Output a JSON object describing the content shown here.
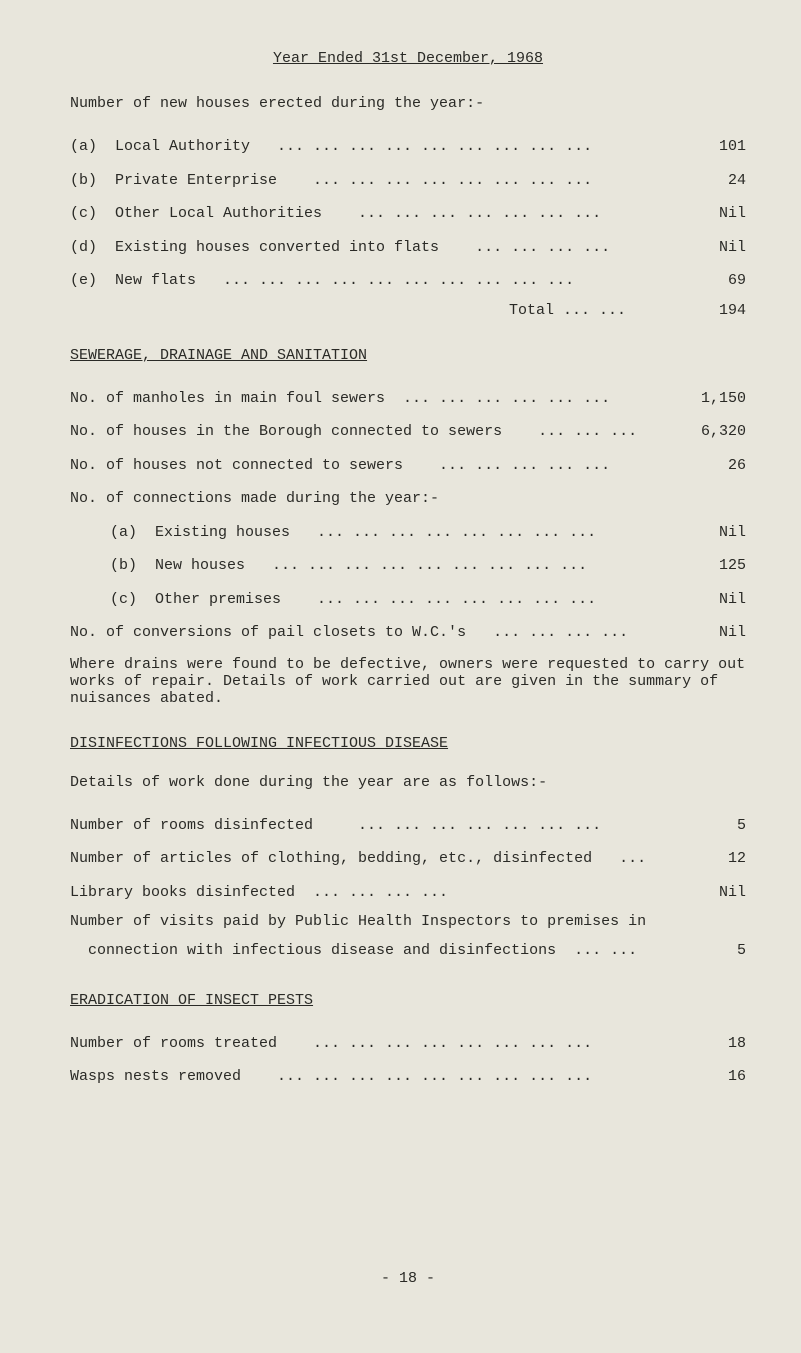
{
  "title": "Year Ended 31st December, 1968",
  "houses_erected_heading": "Number of new houses erected during the year:-",
  "houses": {
    "a": {
      "label": "(a)  Local Authority   ... ... ... ... ... ... ... ... ...",
      "value": "101"
    },
    "b": {
      "label": "(b)  Private Enterprise    ... ... ... ... ... ... ... ...",
      "value": "24"
    },
    "c": {
      "label": "(c)  Other Local Authorities    ... ... ... ... ... ... ...",
      "value": "Nil"
    },
    "d": {
      "label": "(d)  Existing houses converted into flats    ... ... ... ...",
      "value": "Nil"
    },
    "e": {
      "label": "(e)  New flats   ... ... ... ... ... ... ... ... ... ...",
      "value": "69"
    },
    "total_label": "Total     ... ...",
    "total_value": "194"
  },
  "sewerage_head": "SEWERAGE, DRAINAGE AND SANITATION",
  "sewerage": {
    "r1": {
      "label": "No. of manholes in main foul sewers  ... ... ... ... ... ...",
      "value": "1,150"
    },
    "r2": {
      "label": "No. of houses in the Borough connected to sewers    ... ... ...",
      "value": "6,320"
    },
    "r3": {
      "label": "No. of houses not connected to sewers    ... ... ... ... ...",
      "value": "26"
    },
    "r4": {
      "label": "No. of connections made during the year:-",
      "value": ""
    },
    "sa": {
      "label": "(a)  Existing houses   ... ... ... ... ... ... ... ...",
      "value": "Nil"
    },
    "sb": {
      "label": "(b)  New houses   ... ... ... ... ... ... ... ... ...",
      "value": "125"
    },
    "sc": {
      "label": "(c)  Other premises    ... ... ... ... ... ... ... ...",
      "value": "Nil"
    },
    "conv": {
      "label": "No. of conversions of pail closets to W.C.'s   ... ... ... ...",
      "value": "Nil"
    }
  },
  "drains_para": "Where drains were found to be defective, owners were requested to carry out works of repair.  Details of work carried out are given in the summary of nuisances abated.",
  "disinfections_head": "DISINFECTIONS FOLLOWING INFECTIOUS DISEASE",
  "disinfections_intro": "Details of work done during the year are as follows:-",
  "disinfections": {
    "r1": {
      "label": "Number of rooms disinfected     ... ... ... ... ... ... ...",
      "value": "5"
    },
    "r2": {
      "label": "Number of articles of clothing, bedding, etc., disinfected   ...",
      "value": "12"
    },
    "r3": {
      "label": "Library books disinfected  ... ... ... ... ",
      "value": "Nil"
    },
    "r4a": "Number of visits paid by Public Health Inspectors to premises in",
    "r4": {
      "label": "  connection with infectious disease and disinfections  ... ...",
      "value": "5"
    }
  },
  "eradication_head": "ERADICATION OF INSECT PESTS",
  "eradication": {
    "r1": {
      "label": "Number of rooms treated    ... ... ... ... ... ... ... ...",
      "value": "18"
    },
    "r2": {
      "label": "Wasps nests removed    ... ... ... ... ... ... ... ... ...",
      "value": "16"
    }
  },
  "page_number": "- 18 -"
}
